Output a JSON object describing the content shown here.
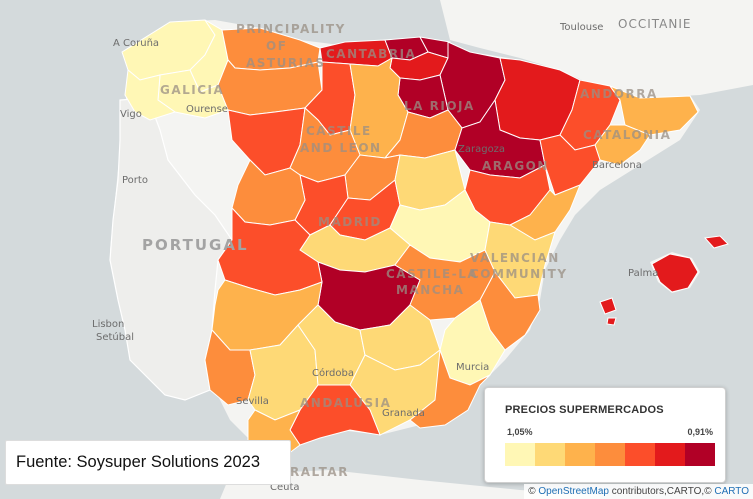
{
  "colors": {
    "sea": "#d4dadc",
    "land": "#f4f4f2",
    "border": "#ffffff",
    "scale": [
      "#fff7b5",
      "#fed976",
      "#feb24c",
      "#fd8d3c",
      "#fc4e2a",
      "#e31a1c",
      "#b10026"
    ]
  },
  "map_labels": {
    "countries": [
      "PORTUGAL",
      "OCCITANIE"
    ],
    "regions": [
      "GALICIA",
      "PRINCIPALITY",
      "OF",
      "ASTURIAS",
      "CANTABRIA",
      "LA RIOJA",
      "CATALONIA",
      "ANDORRA",
      "ARAGON",
      "CASTILE",
      "AND LEON",
      "MADRID",
      "VALENCIAN",
      "COMMUNITY",
      "CASTILE-LA",
      "MANCHA",
      "ANDALUSIA",
      "GIBRALTAR"
    ],
    "cities": [
      "A Coruña",
      "Ourense",
      "Vigo",
      "Porto",
      "Lisbon",
      "Setúbal",
      "Toulouse",
      "Zaragoza",
      "Barcelona",
      "Palma",
      "Murcia",
      "Córdoba",
      "Sevilla",
      "Granada",
      "Ceuta"
    ]
  },
  "legend": {
    "title": "PRECIOS SUPERMERCADOS",
    "min_label": "1,05%",
    "max_label": "0,91%"
  },
  "source_text": "Fuente: Soysuper Solutions 2023",
  "attribution": {
    "prefix": "©",
    "osm": "OpenStreetMap",
    "middle": "contributors,CARTO,©",
    "carto": "CARTO"
  }
}
